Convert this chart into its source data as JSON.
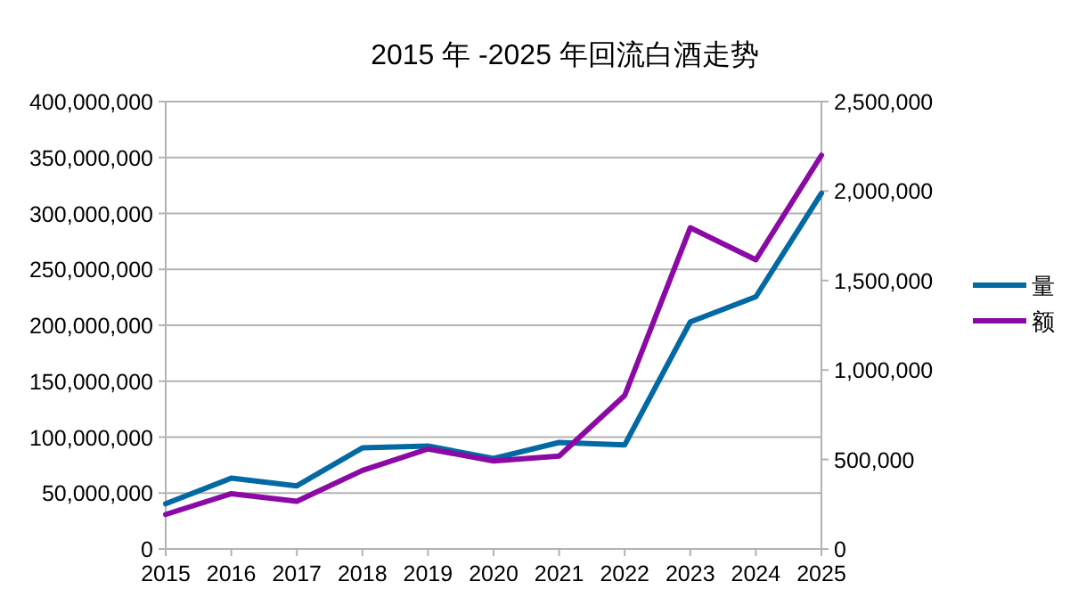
{
  "chart_data": {
    "type": "line",
    "title": "2015 年 -2025 年回流白酒走势",
    "x": [
      2015,
      2016,
      2017,
      2018,
      2019,
      2020,
      2021,
      2022,
      2023,
      2024,
      2025
    ],
    "xlim": [
      2015,
      2025
    ],
    "xticks": [
      2015,
      2016,
      2017,
      2018,
      2019,
      2020,
      2021,
      2022,
      2023,
      2024,
      2025
    ],
    "ylim": [
      0,
      400000000
    ],
    "yticks": [
      0,
      {
        "value": 50000000,
        "label": "50,000,000"
      },
      {
        "value": 100000000,
        "label": "100,000,000"
      },
      {
        "value": 150000000,
        "label": "150,000,000"
      },
      {
        "value": 200000000,
        "label": "200,000,000"
      },
      {
        "value": 250000000,
        "label": "250,000,000"
      },
      {
        "value": 300000000,
        "label": "300,000,000"
      },
      {
        "value": 350000000,
        "label": "350,000,000"
      },
      {
        "value": 400000000,
        "label": "400,000,000"
      }
    ],
    "y2lim": [
      0,
      2500000
    ],
    "y2ticks": [
      0,
      {
        "value": 500000,
        "label": "500,000"
      },
      {
        "value": 1000000,
        "label": "1,000,000"
      },
      {
        "value": 1500000,
        "label": "1,500,000"
      },
      {
        "value": 2000000,
        "label": "2,000,000"
      },
      {
        "value": 2500000,
        "label": "2,500,000"
      }
    ],
    "grid": "y",
    "legend": "right",
    "marker": "none",
    "line_style": "solid",
    "series": [
      {
        "name": "量",
        "color": "#0369a3",
        "values": [
          40400000,
          63300000,
          56400000,
          90400000,
          92000000,
          80900000,
          95200000,
          93100000,
          203000000,
          225500000,
          318000000
        ]
      },
      {
        "name": "额",
        "color": "#8b0aa5",
        "axis": "y2",
        "values": [
          193000,
          309000,
          266000,
          439000,
          559000,
          492000,
          519000,
          858000,
          1795000,
          1616000,
          2200000
        ]
      }
    ]
  }
}
